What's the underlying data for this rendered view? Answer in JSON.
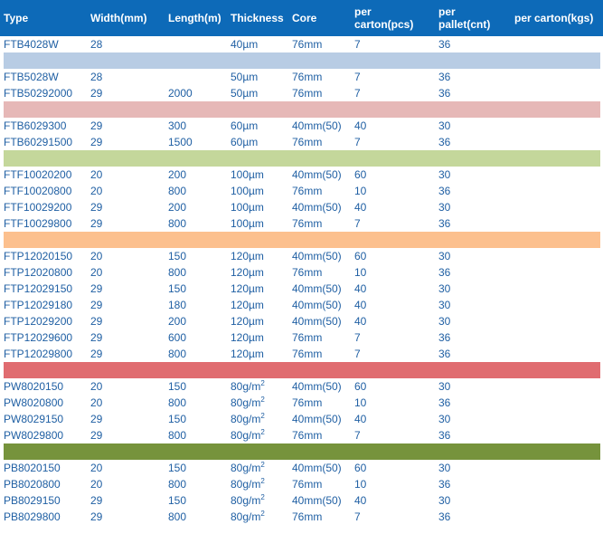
{
  "headers": {
    "type": "Type",
    "width": "Width(mm)",
    "length": "Length(m)",
    "thickness": "Thickness",
    "core": "Core",
    "carton_pcs_1": "per",
    "carton_pcs_2": "carton(pcs)",
    "pallet_cnt_1": "per",
    "pallet_cnt_2": "pallet(cnt)",
    "carton_kgs": "per carton(kgs)"
  },
  "colors": {
    "header_bg": "#0d6ab8",
    "text": "#1f5fa3",
    "separators": [
      "#b8cce4",
      "#e6b8b7",
      "#c4d79b",
      "#fcc08e",
      "#e06c70",
      "#76933c"
    ]
  },
  "groups": [
    {
      "rows": [
        {
          "type": "FTB4028W",
          "width": "28",
          "length": "",
          "thickness": "40µm",
          "thickness_sup": "",
          "core": "76mm",
          "carton": "7",
          "pallet": "36",
          "kgs": ""
        }
      ]
    },
    {
      "rows": [
        {
          "type": "FTB5028W",
          "width": "28",
          "length": "",
          "thickness": "50µm",
          "thickness_sup": "",
          "core": "76mm",
          "carton": "7",
          "pallet": "36",
          "kgs": ""
        },
        {
          "type": "FTB50292000",
          "width": "29",
          "length": "2000",
          "thickness": "50µm",
          "thickness_sup": "",
          "core": "76mm",
          "carton": "7",
          "pallet": "36",
          "kgs": ""
        }
      ]
    },
    {
      "rows": [
        {
          "type": "FTB6029300",
          "width": "29",
          "length": "300",
          "thickness": "60µm",
          "thickness_sup": "",
          "core": "40mm(50)",
          "carton": "40",
          "pallet": "30",
          "kgs": ""
        },
        {
          "type": "FTB60291500",
          "width": "29",
          "length": "1500",
          "thickness": "60µm",
          "thickness_sup": "",
          "core": "76mm",
          "carton": "7",
          "pallet": "36",
          "kgs": ""
        }
      ]
    },
    {
      "rows": [
        {
          "type": "FTF10020200",
          "width": "20",
          "length": "200",
          "thickness": "100µm",
          "thickness_sup": "",
          "core": "40mm(50)",
          "carton": "60",
          "pallet": "30",
          "kgs": ""
        },
        {
          "type": "FTF10020800",
          "width": "20",
          "length": "800",
          "thickness": "100µm",
          "thickness_sup": "",
          "core": "76mm",
          "carton": "10",
          "pallet": "36",
          "kgs": ""
        },
        {
          "type": "FTF10029200",
          "width": "29",
          "length": "200",
          "thickness": "100µm",
          "thickness_sup": "",
          "core": "40mm(50)",
          "carton": "40",
          "pallet": "30",
          "kgs": ""
        },
        {
          "type": "FTF10029800",
          "width": "29",
          "length": "800",
          "thickness": "100µm",
          "thickness_sup": "",
          "core": "76mm",
          "carton": "7",
          "pallet": "36",
          "kgs": ""
        }
      ]
    },
    {
      "rows": [
        {
          "type": "FTP12020150",
          "width": "20",
          "length": "150",
          "thickness": "120µm",
          "thickness_sup": "",
          "core": "40mm(50)",
          "carton": "60",
          "pallet": "30",
          "kgs": ""
        },
        {
          "type": "FTP12020800",
          "width": "20",
          "length": "800",
          "thickness": "120µm",
          "thickness_sup": "",
          "core": "76mm",
          "carton": "10",
          "pallet": "36",
          "kgs": ""
        },
        {
          "type": "FTP12029150",
          "width": "29",
          "length": "150",
          "thickness": "120µm",
          "thickness_sup": "",
          "core": "40mm(50)",
          "carton": "40",
          "pallet": "30",
          "kgs": ""
        },
        {
          "type": "FTP12029180",
          "width": "29",
          "length": "180",
          "thickness": "120µm",
          "thickness_sup": "",
          "core": "40mm(50)",
          "carton": "40",
          "pallet": "30",
          "kgs": ""
        },
        {
          "type": "FTP12029200",
          "width": "29",
          "length": "200",
          "thickness": "120µm",
          "thickness_sup": "",
          "core": "40mm(50)",
          "carton": "40",
          "pallet": "30",
          "kgs": ""
        },
        {
          "type": "FTP12029600",
          "width": "29",
          "length": "600",
          "thickness": "120µm",
          "thickness_sup": "",
          "core": "76mm",
          "carton": "7",
          "pallet": "36",
          "kgs": ""
        },
        {
          "type": "FTP12029800",
          "width": "29",
          "length": "800",
          "thickness": "120µm",
          "thickness_sup": "",
          "core": "76mm",
          "carton": "7",
          "pallet": "36",
          "kgs": ""
        }
      ]
    },
    {
      "rows": [
        {
          "type": "PW8020150",
          "width": "20",
          "length": "150",
          "thickness": "80g/m",
          "thickness_sup": "2",
          "core": "40mm(50)",
          "carton": "60",
          "pallet": "30",
          "kgs": ""
        },
        {
          "type": "PW8020800",
          "width": "20",
          "length": "800",
          "thickness": "80g/m",
          "thickness_sup": "2",
          "core": "76mm",
          "carton": "10",
          "pallet": "36",
          "kgs": ""
        },
        {
          "type": "PW8029150",
          "width": "29",
          "length": "150",
          "thickness": "80g/m",
          "thickness_sup": "2",
          "core": "40mm(50)",
          "carton": "40",
          "pallet": "30",
          "kgs": ""
        },
        {
          "type": "PW8029800",
          "width": "29",
          "length": "800",
          "thickness": "80g/m",
          "thickness_sup": "2",
          "core": "76mm",
          "carton": "7",
          "pallet": "36",
          "kgs": ""
        }
      ]
    },
    {
      "rows": [
        {
          "type": "PB8020150",
          "width": "20",
          "length": "150",
          "thickness": "80g/m",
          "thickness_sup": "2",
          "core": "40mm(50)",
          "carton": "60",
          "pallet": "30",
          "kgs": ""
        },
        {
          "type": "PB8020800",
          "width": "20",
          "length": "800",
          "thickness": "80g/m",
          "thickness_sup": "2",
          "core": "76mm",
          "carton": "10",
          "pallet": "36",
          "kgs": ""
        },
        {
          "type": "PB8029150",
          "width": "29",
          "length": "150",
          "thickness": "80g/m",
          "thickness_sup": "2",
          "core": "40mm(50)",
          "carton": "40",
          "pallet": "30",
          "kgs": ""
        },
        {
          "type": "PB8029800",
          "width": "29",
          "length": "800",
          "thickness": "80g/m",
          "thickness_sup": "2",
          "core": "76mm",
          "carton": "7",
          "pallet": "36",
          "kgs": ""
        }
      ]
    }
  ]
}
